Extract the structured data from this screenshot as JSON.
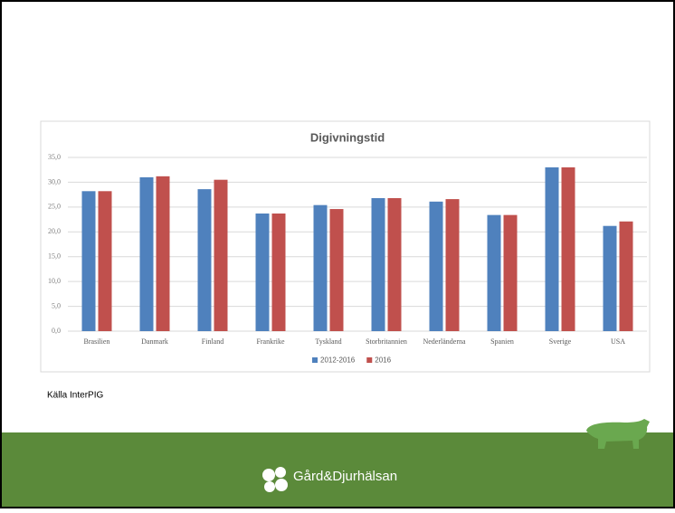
{
  "chart_data": {
    "type": "bar",
    "title": "Digivningstid",
    "categories": [
      "Brasilien",
      "Danmark",
      "Finland",
      "Frankrike",
      "Tyskland",
      "Storbritannien",
      "Nederländerna",
      "Spanien",
      "Sverige",
      "USA"
    ],
    "series": [
      {
        "name": "2012-2016",
        "color": "#4f81bd",
        "values": [
          28.2,
          31.0,
          28.6,
          23.7,
          25.4,
          26.8,
          26.1,
          23.4,
          33.0,
          21.2
        ]
      },
      {
        "name": "2016",
        "color": "#c0504d",
        "values": [
          28.2,
          31.2,
          30.5,
          23.7,
          24.6,
          26.8,
          26.6,
          23.4,
          33.0,
          22.1
        ]
      }
    ],
    "ylim": [
      0,
      35
    ],
    "yticks": [
      {
        "value": 0,
        "label": "0,0"
      },
      {
        "value": 5,
        "label": "5,0"
      },
      {
        "value": 10,
        "label": "10,0"
      },
      {
        "value": 15,
        "label": "15,0"
      },
      {
        "value": 20,
        "label": "20,0"
      },
      {
        "value": 25,
        "label": "25,0"
      },
      {
        "value": 30,
        "label": "30,0"
      },
      {
        "value": 35,
        "label": "35,0"
      }
    ],
    "grid": true,
    "legend": "bottom"
  },
  "source": "Källa InterPIG",
  "logo": "Gård&Djurhälsan"
}
